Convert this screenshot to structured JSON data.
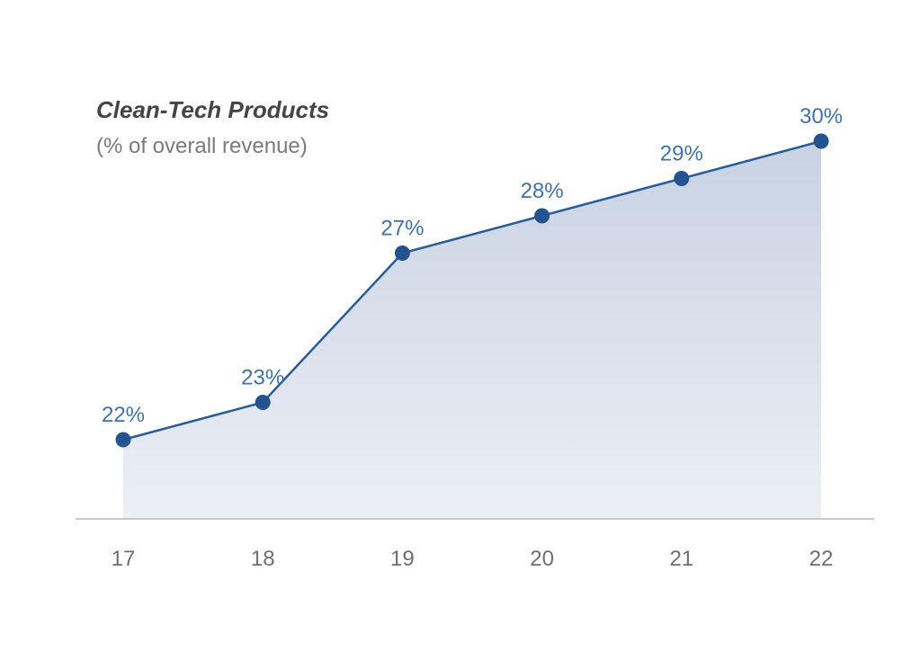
{
  "chart_data": {
    "type": "area",
    "title": "Clean-Tech Products",
    "subtitle": "(% of overall revenue)",
    "xlabel": "",
    "ylabel": "",
    "categories": [
      "17",
      "18",
      "19",
      "20",
      "21",
      "22"
    ],
    "series": [
      {
        "name": "Clean-Tech Products",
        "values": [
          22,
          23,
          27,
          28,
          29,
          30
        ]
      }
    ],
    "data_labels": [
      "22%",
      "23%",
      "27%",
      "28%",
      "29%",
      "30%"
    ],
    "ylim": [
      19.88,
      30
    ],
    "grid": false,
    "legend": "none",
    "colors": {
      "line": "#2a5c96",
      "marker": "#23548f",
      "fill_top": "#c8d2e3",
      "fill_bottom": "#eceff5",
      "label": "#3f72ad",
      "axis": "#b5b5b5"
    }
  }
}
